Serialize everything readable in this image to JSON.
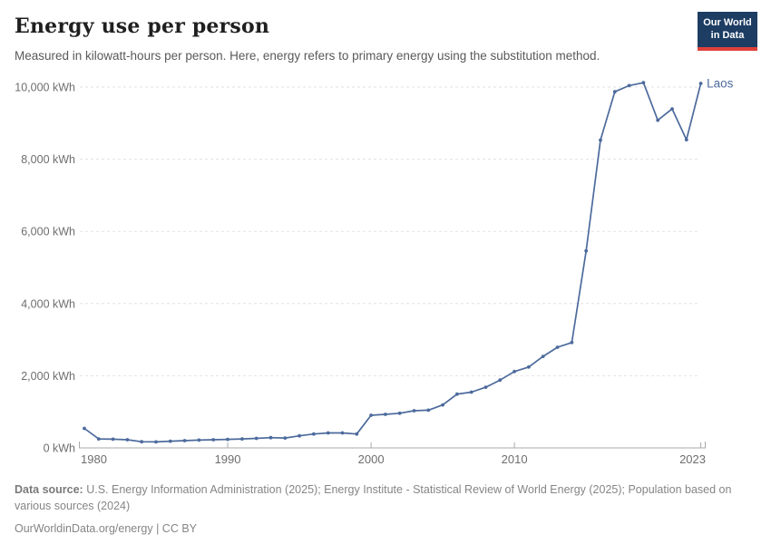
{
  "header": {
    "title": "Energy use per person",
    "subtitle": "Measured in kilowatt-hours per person. Here, energy refers to primary energy using the substitution method."
  },
  "logo": {
    "line1": "Our World",
    "line2": "in Data",
    "bg_color": "#1d3d63",
    "bar_color": "#e0403a"
  },
  "chart_data": {
    "type": "line",
    "title": "Energy use per person",
    "unit": "kWh",
    "entity_label": "Laos",
    "line_color": "#4c6a9c",
    "grid": "horizontal-dashed",
    "legend_position": "end-of-line-label",
    "ylim": [
      0,
      10000
    ],
    "xlim": [
      1980,
      2023
    ],
    "y_ticks": [
      {
        "value": 0,
        "label": "0 kWh"
      },
      {
        "value": 2000,
        "label": "2,000 kWh"
      },
      {
        "value": 4000,
        "label": "4,000 kWh"
      },
      {
        "value": 6000,
        "label": "6,000 kWh"
      },
      {
        "value": 8000,
        "label": "8,000 kWh"
      },
      {
        "value": 10000,
        "label": "10,000 kWh"
      }
    ],
    "x_ticks": [
      {
        "value": 1980,
        "label": "1980"
      },
      {
        "value": 1990,
        "label": "1990"
      },
      {
        "value": 2000,
        "label": "2000"
      },
      {
        "value": 2010,
        "label": "2010"
      },
      {
        "value": 2023,
        "label": "2023"
      }
    ],
    "x": [
      1980,
      1981,
      1982,
      1983,
      1984,
      1985,
      1986,
      1987,
      1988,
      1989,
      1990,
      1991,
      1992,
      1993,
      1994,
      1995,
      1996,
      1997,
      1998,
      1999,
      2000,
      2001,
      2002,
      2003,
      2004,
      2005,
      2006,
      2007,
      2008,
      2009,
      2010,
      2011,
      2012,
      2013,
      2014,
      2015,
      2016,
      2017,
      2018,
      2019,
      2020,
      2021,
      2022,
      2023
    ],
    "series": [
      {
        "name": "Laos",
        "color": "#4c6a9c",
        "values": [
          540,
          250,
          240,
          225,
          170,
          165,
          185,
          200,
          215,
          225,
          235,
          250,
          265,
          285,
          275,
          335,
          385,
          415,
          415,
          385,
          905,
          930,
          960,
          1030,
          1045,
          1190,
          1490,
          1545,
          1680,
          1880,
          2115,
          2240,
          2535,
          2790,
          2920,
          5460,
          8530,
          9870,
          10040,
          10120,
          9080,
          9395,
          8540,
          10100
        ]
      }
    ]
  },
  "footer": {
    "source_label": "Data source:",
    "source_text": " U.S. Energy Information Administration (2025); Energy Institute - Statistical Review of World Energy (2025); Population based on various sources (2024)",
    "link_text": "OurWorldinData.org/energy | CC BY"
  },
  "colors": {
    "axis": "#a8a8a8",
    "gridline": "#e2e2e2",
    "tick_label": "#6e6e6e",
    "title": "#1f1f1f",
    "subtitle": "#595959",
    "footer": "#858585"
  }
}
